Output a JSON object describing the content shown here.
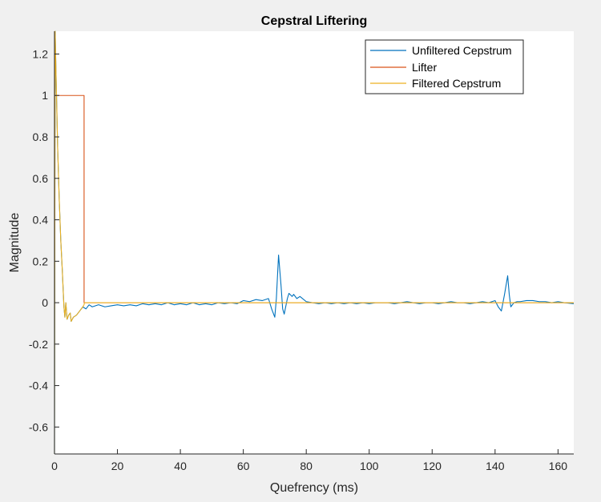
{
  "colors": {
    "figure_bg": "#f0f0f0",
    "axes_bg": "#ffffff",
    "axis": "#262626",
    "unfiltered": "#0072bd",
    "lifter": "#d95319",
    "filtered": "#edb120"
  },
  "chart_data": {
    "type": "line",
    "title": "Cepstral Liftering",
    "xlabel": "Quefrency (ms)",
    "ylabel": "Magnitude",
    "xlim": [
      0,
      165
    ],
    "ylim": [
      -0.73,
      1.31
    ],
    "xticks": [
      0,
      20,
      40,
      60,
      80,
      100,
      120,
      140,
      160
    ],
    "yticks": [
      -0.6,
      -0.4,
      -0.2,
      0,
      0.2,
      0.4,
      0.6,
      0.8,
      1,
      1.2
    ],
    "ytick_labels": [
      "-0.6",
      "-0.4",
      "-0.2",
      "0",
      "0.2",
      "0.4",
      "0.6",
      "0.8",
      "1",
      "1.2"
    ],
    "grid": false,
    "legend_position": "top-right",
    "series": [
      {
        "name": "Unfiltered Cepstrum",
        "color_key": "unfiltered",
        "points": [
          [
            0,
            -0.73
          ],
          [
            0.2,
            1.31
          ],
          [
            0.5,
            1.1
          ],
          [
            1,
            0.75
          ],
          [
            1.5,
            0.5
          ],
          [
            2,
            0.3
          ],
          [
            2.5,
            0.15
          ],
          [
            3,
            -0.02
          ],
          [
            3.3,
            -0.07
          ],
          [
            3.6,
            0.0
          ],
          [
            4,
            -0.08
          ],
          [
            4.5,
            -0.06
          ],
          [
            5,
            -0.05
          ],
          [
            5.3,
            -0.09
          ],
          [
            6,
            -0.07
          ],
          [
            7,
            -0.06
          ],
          [
            8,
            -0.04
          ],
          [
            9,
            -0.02
          ],
          [
            10,
            -0.03
          ],
          [
            11,
            -0.01
          ],
          [
            12,
            -0.02
          ],
          [
            14,
            -0.01
          ],
          [
            16,
            -0.02
          ],
          [
            18,
            -0.015
          ],
          [
            20,
            -0.01
          ],
          [
            22,
            -0.015
          ],
          [
            24,
            -0.01
          ],
          [
            26,
            -0.015
          ],
          [
            28,
            -0.005
          ],
          [
            30,
            -0.01
          ],
          [
            32,
            -0.005
          ],
          [
            34,
            -0.01
          ],
          [
            36,
            0.0
          ],
          [
            38,
            -0.01
          ],
          [
            40,
            -0.005
          ],
          [
            42,
            -0.01
          ],
          [
            44,
            0.0
          ],
          [
            46,
            -0.01
          ],
          [
            48,
            -0.005
          ],
          [
            50,
            -0.01
          ],
          [
            52,
            0.0
          ],
          [
            54,
            -0.005
          ],
          [
            56,
            0.0
          ],
          [
            58,
            -0.005
          ],
          [
            60,
            0.01
          ],
          [
            62,
            0.005
          ],
          [
            64,
            0.015
          ],
          [
            66,
            0.01
          ],
          [
            68,
            0.02
          ],
          [
            69,
            -0.03
          ],
          [
            70,
            -0.07
          ],
          [
            70.5,
            0.02
          ],
          [
            71.2,
            0.23
          ],
          [
            72,
            0.08
          ],
          [
            72.5,
            -0.03
          ],
          [
            73,
            -0.055
          ],
          [
            74,
            0.02
          ],
          [
            74.5,
            0.045
          ],
          [
            75.5,
            0.03
          ],
          [
            76,
            0.04
          ],
          [
            77,
            0.02
          ],
          [
            78,
            0.03
          ],
          [
            80,
            0.005
          ],
          [
            82,
            0.0
          ],
          [
            84,
            -0.005
          ],
          [
            86,
            0.0
          ],
          [
            88,
            -0.005
          ],
          [
            90,
            0.0
          ],
          [
            92,
            -0.005
          ],
          [
            94,
            0.0
          ],
          [
            96,
            -0.005
          ],
          [
            98,
            0.0
          ],
          [
            100,
            -0.005
          ],
          [
            102,
            0.0
          ],
          [
            104,
            0.0
          ],
          [
            106,
            0.0
          ],
          [
            108,
            -0.005
          ],
          [
            110,
            0.0
          ],
          [
            112,
            0.005
          ],
          [
            114,
            0.0
          ],
          [
            116,
            -0.005
          ],
          [
            118,
            0.0
          ],
          [
            120,
            0.0
          ],
          [
            122,
            -0.005
          ],
          [
            124,
            0.0
          ],
          [
            126,
            0.005
          ],
          [
            128,
            0.0
          ],
          [
            130,
            0.0
          ],
          [
            132,
            -0.005
          ],
          [
            134,
            0.0
          ],
          [
            136,
            0.005
          ],
          [
            138,
            0.0
          ],
          [
            140,
            0.01
          ],
          [
            141,
            -0.02
          ],
          [
            142,
            -0.04
          ],
          [
            143,
            0.04
          ],
          [
            144,
            0.13
          ],
          [
            144.5,
            0.04
          ],
          [
            145,
            -0.02
          ],
          [
            146,
            0.0
          ],
          [
            147,
            0.005
          ],
          [
            148,
            0.005
          ],
          [
            150,
            0.01
          ],
          [
            152,
            0.01
          ],
          [
            154,
            0.005
          ],
          [
            156,
            0.005
          ],
          [
            158,
            0.0
          ],
          [
            160,
            0.005
          ],
          [
            162,
            0.0
          ],
          [
            165,
            -0.005
          ]
        ]
      },
      {
        "name": "Lifter",
        "color_key": "lifter",
        "points": [
          [
            0,
            1
          ],
          [
            9.4,
            1
          ],
          [
            9.4,
            0
          ],
          [
            165,
            0
          ]
        ]
      },
      {
        "name": "Filtered Cepstrum",
        "color_key": "filtered",
        "points": [
          [
            0,
            -0.73
          ],
          [
            0.2,
            1.31
          ],
          [
            0.5,
            1.1
          ],
          [
            1,
            0.75
          ],
          [
            1.5,
            0.5
          ],
          [
            2,
            0.3
          ],
          [
            2.5,
            0.15
          ],
          [
            3,
            -0.02
          ],
          [
            3.3,
            -0.07
          ],
          [
            3.6,
            0.0
          ],
          [
            4,
            -0.08
          ],
          [
            4.5,
            -0.06
          ],
          [
            5,
            -0.05
          ],
          [
            5.3,
            -0.09
          ],
          [
            6,
            -0.07
          ],
          [
            7,
            -0.06
          ],
          [
            8,
            -0.04
          ],
          [
            9,
            -0.02
          ],
          [
            9.4,
            -0.01
          ],
          [
            9.5,
            0.0
          ],
          [
            165,
            0.0
          ]
        ]
      }
    ]
  }
}
